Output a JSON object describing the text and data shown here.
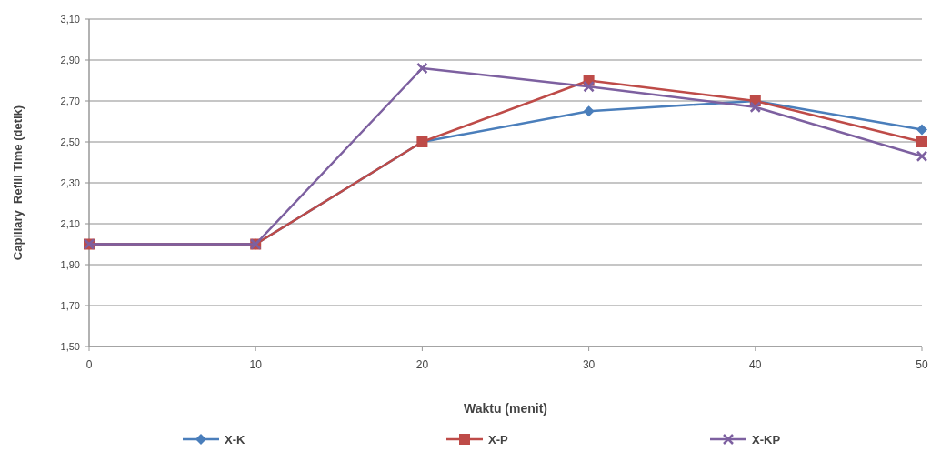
{
  "chart_data": {
    "type": "line",
    "xlabel": "Waktu (menit)",
    "ylabel": "Capillary  Refill Time (detik)",
    "x": [
      0,
      10,
      20,
      30,
      40,
      50
    ],
    "series": [
      {
        "name": "X-K",
        "color": "#4a7ebb",
        "marker": "diamond",
        "values": [
          2.0,
          2.0,
          2.5,
          2.65,
          2.7,
          2.56
        ]
      },
      {
        "name": "X-P",
        "color": "#be4b48",
        "marker": "square",
        "values": [
          2.0,
          2.0,
          2.5,
          2.8,
          2.7,
          2.5
        ]
      },
      {
        "name": "X-KP",
        "color": "#7d60a0",
        "marker": "cross",
        "values": [
          2.0,
          2.0,
          2.86,
          2.77,
          2.67,
          2.43
        ]
      }
    ],
    "xlim": [
      0,
      50
    ],
    "xticks": [
      0,
      10,
      20,
      30,
      40,
      50
    ],
    "ylim": [
      1.5,
      3.1
    ],
    "yticks": [
      {
        "value": 1.5,
        "label": "1,50"
      },
      {
        "value": 1.7,
        "label": "1,70"
      },
      {
        "value": 1.9,
        "label": "1,90"
      },
      {
        "value": 2.1,
        "label": "2,10"
      },
      {
        "value": 2.3,
        "label": "2,30"
      },
      {
        "value": 2.5,
        "label": "2,50"
      },
      {
        "value": 2.7,
        "label": "2,70"
      },
      {
        "value": 2.9,
        "label": "2,90"
      },
      {
        "value": 3.1,
        "label": "3,10"
      }
    ],
    "grid": "y",
    "legend": "bottom",
    "line_style": "solid"
  }
}
